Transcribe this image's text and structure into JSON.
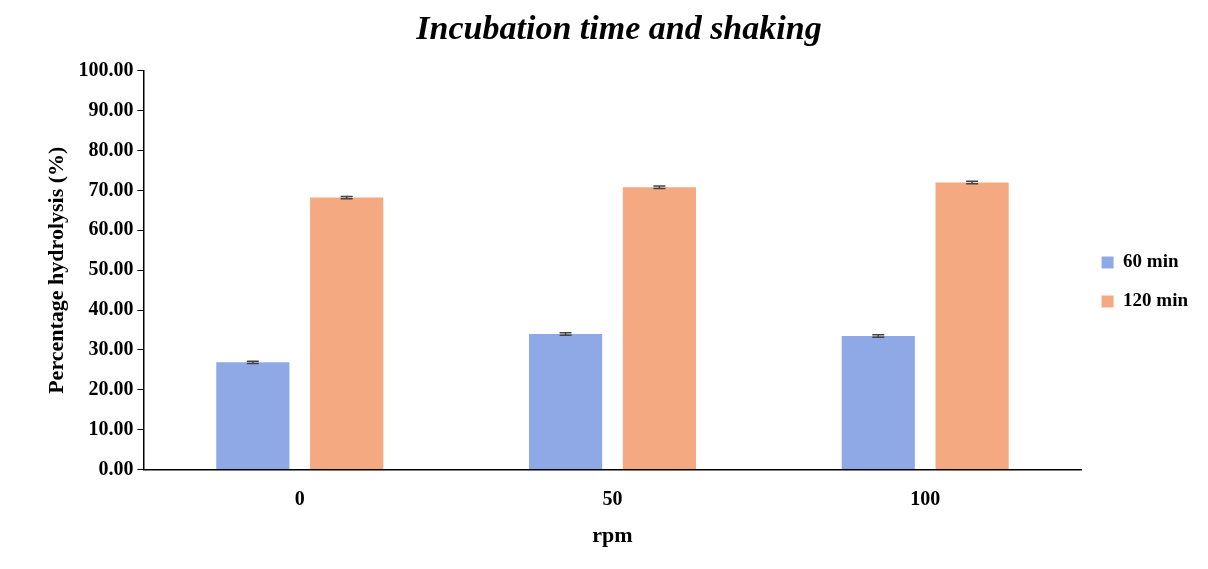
{
  "chart_data": {
    "type": "bar",
    "title": "Incubation time and shaking",
    "xlabel": "rpm",
    "ylabel": "Percentage hydrolysis (%)",
    "categories": [
      "0",
      "50",
      "100"
    ],
    "series": [
      {
        "name": "60 min",
        "color": "#8fa8e6",
        "values": [
          26.9,
          34.0,
          33.5
        ],
        "errors": [
          0.3,
          0.3,
          0.3
        ]
      },
      {
        "name": "120 min",
        "color": "#f5a981",
        "values": [
          68.2,
          70.8,
          72.0
        ],
        "errors": [
          0.3,
          0.3,
          0.3
        ]
      }
    ],
    "ylim": [
      0,
      100
    ],
    "yticks": [
      {
        "value": 0,
        "label": "0.00"
      },
      {
        "value": 10,
        "label": "10.00"
      },
      {
        "value": 20,
        "label": "20.00"
      },
      {
        "value": 30,
        "label": "30.00"
      },
      {
        "value": 40,
        "label": "40.00"
      },
      {
        "value": 50,
        "label": "50.00"
      },
      {
        "value": 60,
        "label": "60.00"
      },
      {
        "value": 70,
        "label": "70.00"
      },
      {
        "value": 80,
        "label": "80.00"
      },
      {
        "value": 90,
        "label": "90.00"
      },
      {
        "value": 100,
        "label": "100.00"
      }
    ],
    "grid": false,
    "legend": "right"
  }
}
